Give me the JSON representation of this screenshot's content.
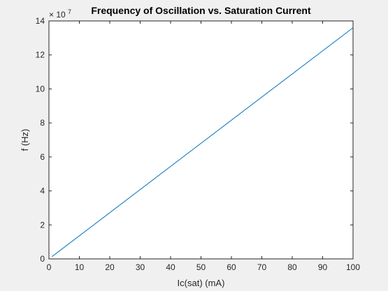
{
  "chart_data": {
    "type": "line",
    "title": "Frequency of Oscillation vs. Saturation Current",
    "xlabel": "Ic(sat) (mA)",
    "ylabel": "f (Hz)",
    "xlim": [
      0,
      100
    ],
    "ylim": [
      0,
      140000000
    ],
    "x_ticks": [
      "0",
      "10",
      "20",
      "30",
      "40",
      "50",
      "60",
      "70",
      "80",
      "90",
      "100"
    ],
    "y_ticks": [
      "0",
      "2",
      "4",
      "6",
      "8",
      "10",
      "12",
      "14"
    ],
    "y_multiplier": {
      "base": "× 10",
      "exponent": "7"
    },
    "grid": false,
    "series": [
      {
        "color": "#0072bd",
        "x": [
          1,
          100
        ],
        "y": [
          1360000,
          136000000
        ]
      }
    ]
  },
  "colors": {
    "figure_background": "#f0f0f0",
    "axes_background": "#ffffff",
    "axis_color": "#262626",
    "line_color": "#0072bd"
  }
}
